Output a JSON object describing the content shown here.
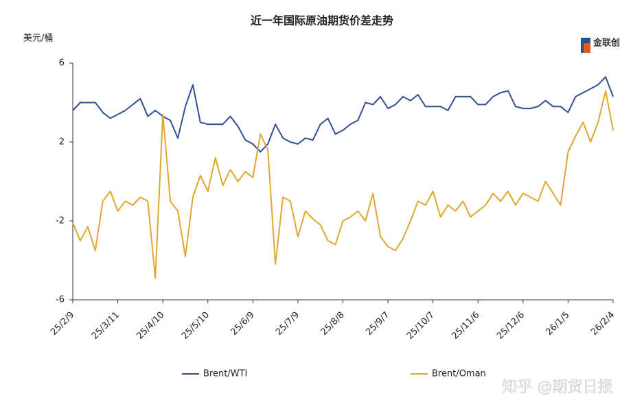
{
  "chart_data": {
    "type": "line",
    "title": "近一年国际原油期货价差走势",
    "y_label": "美元/桶",
    "logo_text": "金联创",
    "watermark": "知乎 @期货日报",
    "categories": [
      "25/2/9",
      null,
      null,
      null,
      null,
      null,
      "25/3/11",
      null,
      null,
      null,
      null,
      null,
      "25/4/10",
      null,
      null,
      null,
      null,
      null,
      "25/5/10",
      null,
      null,
      null,
      null,
      null,
      "25/6/9",
      null,
      null,
      null,
      null,
      null,
      "25/7/9",
      null,
      null,
      null,
      null,
      null,
      "25/8/8",
      null,
      null,
      null,
      null,
      null,
      "25/9/7",
      null,
      null,
      null,
      null,
      null,
      "25/10/7",
      null,
      null,
      null,
      null,
      null,
      "25/11/6",
      null,
      null,
      null,
      null,
      null,
      "25/12/6",
      null,
      null,
      null,
      null,
      null,
      "26/1/5",
      null,
      null,
      null,
      null,
      null,
      "26/2/4"
    ],
    "series": [
      {
        "name": "Brent/WTI",
        "color": "#2e4f8f",
        "values": [
          3.6,
          4.0,
          4.0,
          4.0,
          3.5,
          3.2,
          3.4,
          3.6,
          3.9,
          4.2,
          3.3,
          3.6,
          3.3,
          3.1,
          2.2,
          3.8,
          4.9,
          3.0,
          2.9,
          2.9,
          2.9,
          3.3,
          2.8,
          2.1,
          1.9,
          1.5,
          1.9,
          2.9,
          2.2,
          2.0,
          1.9,
          2.2,
          2.1,
          2.9,
          3.2,
          2.4,
          2.6,
          2.9,
          3.1,
          4.0,
          3.9,
          4.3,
          3.7,
          3.9,
          4.3,
          4.1,
          4.4,
          3.8,
          3.8,
          3.8,
          3.6,
          4.3,
          4.3,
          4.3,
          3.9,
          3.9,
          4.3,
          4.5,
          4.6,
          3.8,
          3.7,
          3.7,
          3.8,
          4.1,
          3.8,
          3.8,
          3.5,
          4.3,
          4.5,
          4.7,
          4.9,
          5.3,
          4.3
        ]
      },
      {
        "name": "Brent/Oman",
        "color": "#e0a72e",
        "values": [
          -2.1,
          -3.0,
          -2.3,
          -3.5,
          -1.0,
          -0.5,
          -1.5,
          -1.0,
          -1.2,
          -0.8,
          -1.0,
          -4.9,
          3.4,
          -1.0,
          -1.5,
          -3.8,
          -0.8,
          0.3,
          -0.5,
          1.2,
          -0.2,
          0.6,
          0.0,
          0.5,
          0.2,
          2.4,
          1.6,
          -4.2,
          -0.8,
          -1.0,
          -2.8,
          -1.5,
          -1.9,
          -2.2,
          -3.0,
          -3.2,
          -2.0,
          -1.8,
          -1.5,
          -2.0,
          -0.6,
          -2.8,
          -3.3,
          -3.5,
          -2.9,
          -2.0,
          -1.0,
          -1.2,
          -0.5,
          -1.8,
          -1.2,
          -1.5,
          -1.0,
          -1.8,
          -1.5,
          -1.2,
          -0.6,
          -1.0,
          -0.5,
          -1.2,
          -0.6,
          -0.8,
          -1.0,
          0.0,
          -0.6,
          -1.2,
          1.5,
          2.3,
          3.0,
          2.0,
          3.0,
          4.6,
          2.6
        ]
      }
    ],
    "ylim": [
      -6,
      6
    ],
    "yticks": [
      -6,
      -2,
      2,
      6
    ],
    "grid": false,
    "legend": "bottom"
  }
}
